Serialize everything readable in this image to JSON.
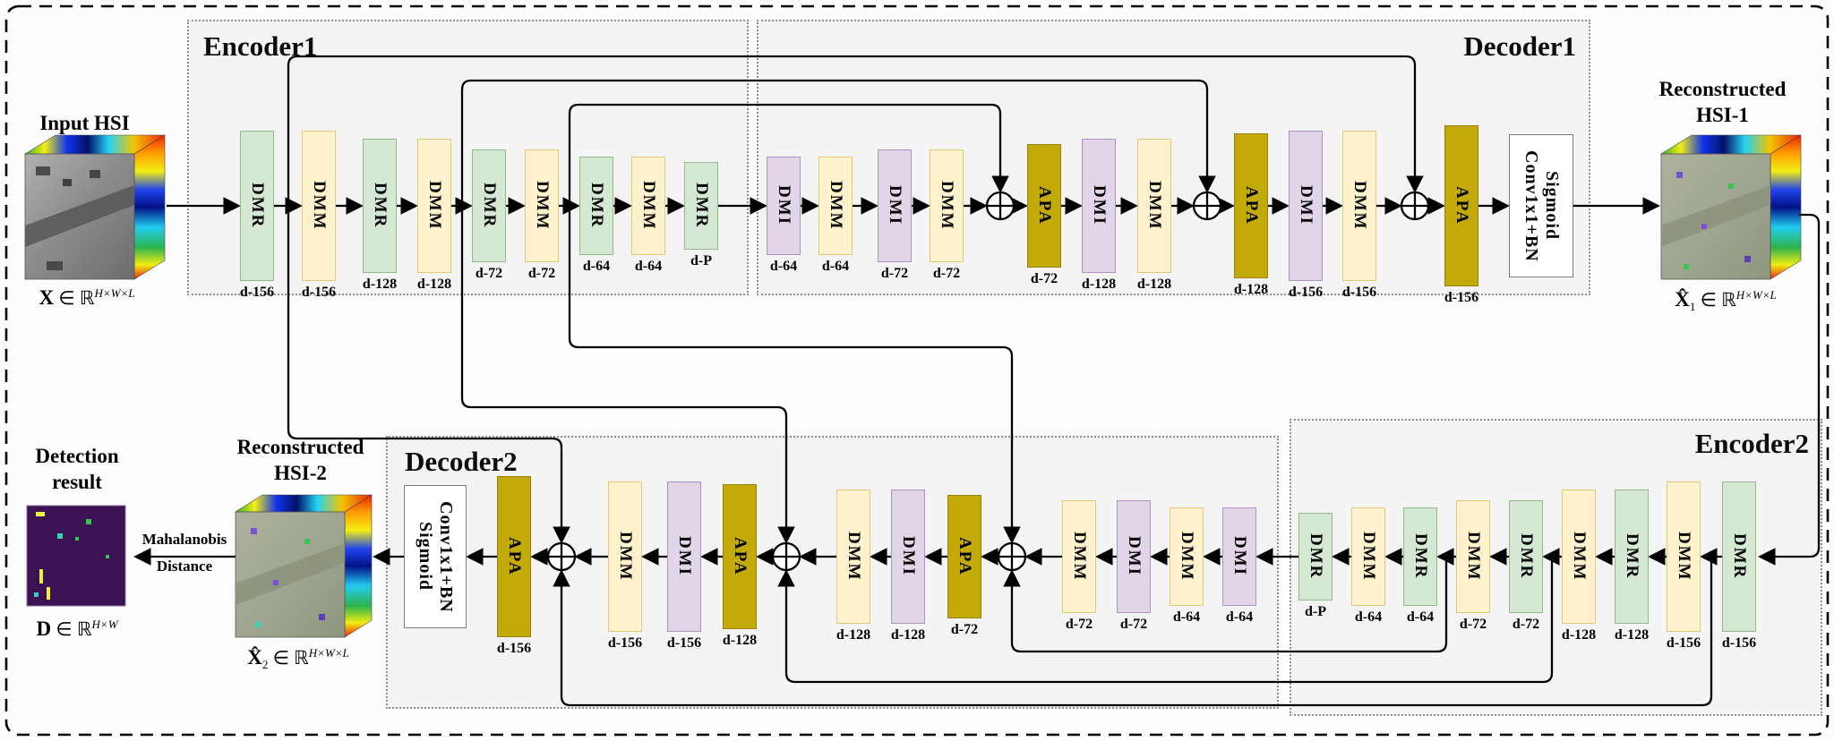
{
  "boxes": {
    "encoder1": "Encoder1",
    "decoder1": "Decoder1",
    "decoder2": "Decoder2",
    "encoder2": "Encoder2"
  },
  "io": {
    "input": {
      "title": "Input HSI",
      "var": "X",
      "mid": " ∈ ℝ",
      "sup": "H×W×L"
    },
    "recon1": {
      "title_line1": "Reconstructed",
      "title_line2": "HSI-1",
      "var": "X̂",
      "sub": "1",
      "mid": " ∈ ℝ",
      "sup": "H×W×L"
    },
    "recon2": {
      "title_line1": "Reconstructed",
      "title_line2": "HSI-2",
      "var": "X̂",
      "sub": "2",
      "mid": " ∈ ℝ",
      "sup": "H×W×L"
    },
    "detection": {
      "title_line1": "Detection",
      "title_line2": "result",
      "var": "D",
      "mid": " ∈ ℝ",
      "sup": "H×W"
    },
    "mahalanobis": {
      "line1": "Mahalanobis",
      "line2": "Distance"
    }
  },
  "conv_top": {
    "col_left": "Conv1x1+BN",
    "col_right": "Sigmoid"
  },
  "conv_bottom": {
    "col_left": "Sigmoid",
    "col_right": "Conv1x1+BN"
  },
  "encoder1_blocks": [
    {
      "label": "DMR",
      "dim": "d-156",
      "type": "dmr"
    },
    {
      "label": "DMM",
      "dim": "d-156",
      "type": "dmm"
    },
    {
      "label": "DMR",
      "dim": "d-128",
      "type": "dmr"
    },
    {
      "label": "DMM",
      "dim": "d-128",
      "type": "dmm"
    },
    {
      "label": "DMR",
      "dim": "d-72",
      "type": "dmr"
    },
    {
      "label": "DMM",
      "dim": "d-72",
      "type": "dmm"
    },
    {
      "label": "DMR",
      "dim": "d-64",
      "type": "dmr"
    },
    {
      "label": "DMM",
      "dim": "d-64",
      "type": "dmm"
    },
    {
      "label": "DMR",
      "dim": "d-P",
      "type": "dmr"
    }
  ],
  "decoder1_seq": [
    {
      "kind": "block",
      "label": "DMI",
      "dim": "d-64",
      "type": "dmi"
    },
    {
      "kind": "block",
      "label": "DMM",
      "dim": "d-64",
      "type": "dmm"
    },
    {
      "kind": "block",
      "label": "DMI",
      "dim": "d-72",
      "type": "dmi"
    },
    {
      "kind": "block",
      "label": "DMM",
      "dim": "d-72",
      "type": "dmm"
    },
    {
      "kind": "sum"
    },
    {
      "kind": "block",
      "label": "APA",
      "dim": "d-72",
      "type": "apa"
    },
    {
      "kind": "block",
      "label": "DMI",
      "dim": "d-128",
      "type": "dmi"
    },
    {
      "kind": "block",
      "label": "DMM",
      "dim": "d-128",
      "type": "dmm"
    },
    {
      "kind": "sum"
    },
    {
      "kind": "block",
      "label": "APA",
      "dim": "d-128",
      "type": "apa"
    },
    {
      "kind": "block",
      "label": "DMI",
      "dim": "d-156",
      "type": "dmi"
    },
    {
      "kind": "block",
      "label": "DMM",
      "dim": "d-156",
      "type": "dmm"
    },
    {
      "kind": "sum"
    },
    {
      "kind": "block",
      "label": "APA",
      "dim": "d-156",
      "type": "apa"
    }
  ],
  "encoder2_blocks": [
    {
      "label": "DMR",
      "dim": "d-P",
      "type": "dmr"
    },
    {
      "label": "DMM",
      "dim": "d-64",
      "type": "dmm"
    },
    {
      "label": "DMR",
      "dim": "d-64",
      "type": "dmr"
    },
    {
      "label": "DMM",
      "dim": "d-72",
      "type": "dmm"
    },
    {
      "label": "DMR",
      "dim": "d-72",
      "type": "dmr"
    },
    {
      "label": "DMM",
      "dim": "d-128",
      "type": "dmm"
    },
    {
      "label": "DMR",
      "dim": "d-128",
      "type": "dmr"
    },
    {
      "label": "DMM",
      "dim": "d-156",
      "type": "dmm"
    },
    {
      "label": "DMR",
      "dim": "d-156",
      "type": "dmr"
    }
  ],
  "decoder2_seq": [
    {
      "kind": "block",
      "label": "APA",
      "dim": "d-156",
      "type": "apa"
    },
    {
      "kind": "sum"
    },
    {
      "kind": "block",
      "label": "DMM",
      "dim": "d-156",
      "type": "dmm"
    },
    {
      "kind": "block",
      "label": "DMI",
      "dim": "d-156",
      "type": "dmi"
    },
    {
      "kind": "block",
      "label": "APA",
      "dim": "d-128",
      "type": "apa"
    },
    {
      "kind": "sum"
    },
    {
      "kind": "block",
      "label": "DMM",
      "dim": "d-128",
      "type": "dmm"
    },
    {
      "kind": "block",
      "label": "DMI",
      "dim": "d-128",
      "type": "dmi"
    },
    {
      "kind": "block",
      "label": "APA",
      "dim": "d-72",
      "type": "apa"
    },
    {
      "kind": "sum"
    },
    {
      "kind": "block",
      "label": "DMM",
      "dim": "d-72",
      "type": "dmm"
    },
    {
      "kind": "block",
      "label": "DMI",
      "dim": "d-72",
      "type": "dmi"
    },
    {
      "kind": "block",
      "label": "DMM",
      "dim": "d-64",
      "type": "dmm"
    },
    {
      "kind": "block",
      "label": "DMI",
      "dim": "d-64",
      "type": "dmi"
    }
  ],
  "colors": {
    "dmr_fill": "#d5e8d4",
    "dmm_fill": "#fff2cc",
    "dmi_fill": "#e1d5e7",
    "apa_fill": "#c4aa08",
    "line": "#000000",
    "box_fill": "#f4f4f4",
    "detection_bg": "#3b1254"
  }
}
